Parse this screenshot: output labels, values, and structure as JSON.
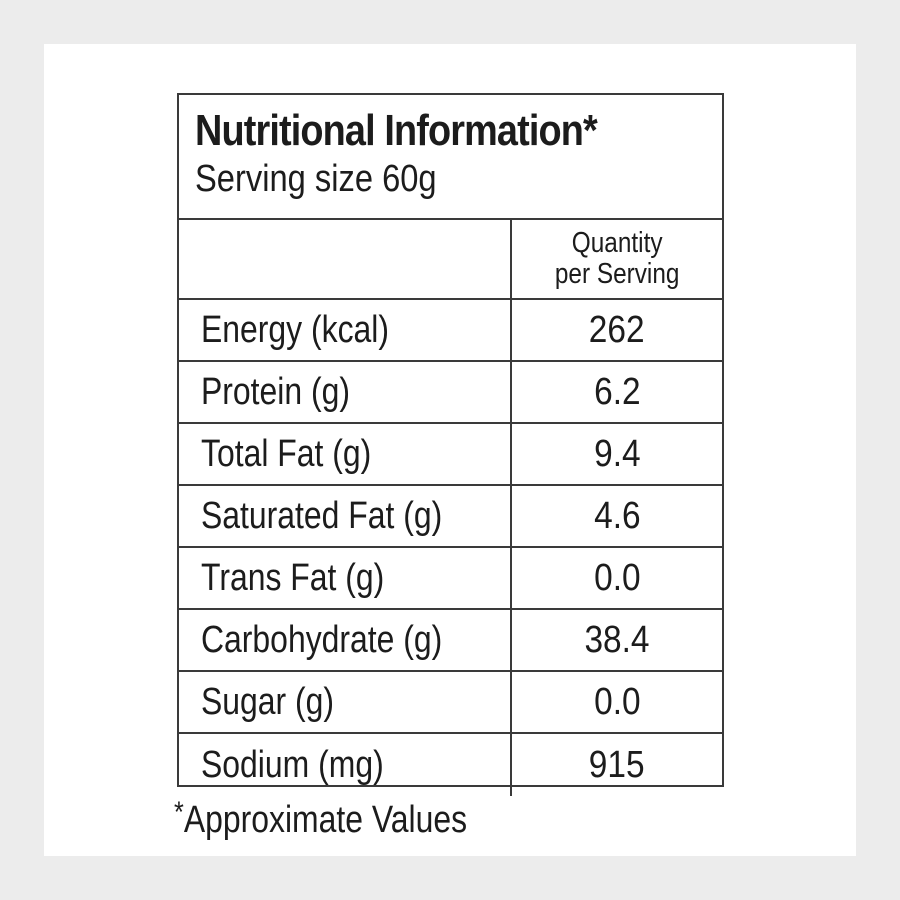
{
  "label": {
    "title": "Nutritional Information*",
    "serving_size": "Serving size 60g",
    "quantity_header_line1": "Quantity",
    "quantity_header_line2": "per Serving",
    "rows": [
      {
        "name": "Energy (kcal)",
        "value": "262"
      },
      {
        "name": "Protein (g)",
        "value": "6.2"
      },
      {
        "name": "Total Fat (g)",
        "value": "9.4"
      },
      {
        "name": "Saturated Fat (g)",
        "value": "4.6"
      },
      {
        "name": "Trans Fat (g)",
        "value": "0.0"
      },
      {
        "name": "Carbohydrate (g)",
        "value": "38.4"
      },
      {
        "name": "Sugar (g)",
        "value": "0.0"
      },
      {
        "name": "Sodium (mg)",
        "value": "915"
      }
    ]
  },
  "footnote": {
    "mark": "*",
    "text": "Approximate Values"
  }
}
